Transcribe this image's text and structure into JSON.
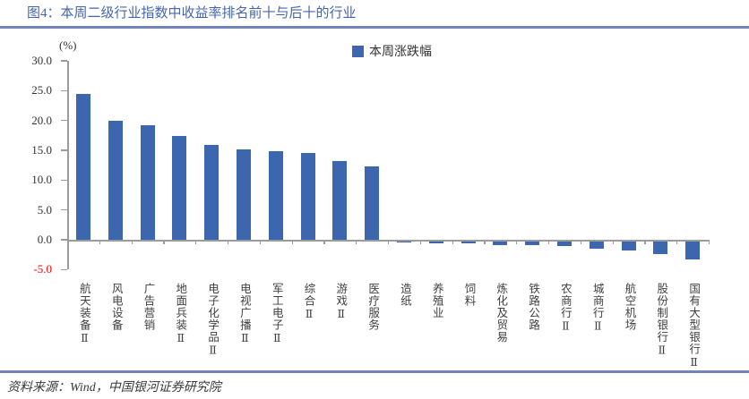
{
  "header": {
    "title": "图4：本周二级行业指数中收益率排名前十与后十的行业"
  },
  "footer": {
    "source": "资料来源：Wind，中国银河证券研究院"
  },
  "colors": {
    "bar": "#3C66AE",
    "title": "#4565AE",
    "divider": "#7384BC",
    "axis": "#9B9B9B",
    "tick_text": "#333333",
    "negative_tick_text": "#FF0000",
    "label_text": "#404040"
  },
  "chart_data": {
    "type": "bar",
    "title": "图4：本周二级行业指数中收益率排名前十与后十的行业",
    "unit_label": "(%)",
    "legend": [
      "本周涨跌幅"
    ],
    "legend_position": "top-center",
    "grid": false,
    "ylim": [
      -5,
      30
    ],
    "ytick_step": 5,
    "negative_ytick_color": "#FF0000",
    "categories": [
      "航天装备Ⅱ",
      "风电设备",
      "广告营销",
      "地面兵装Ⅱ",
      "电子化学品Ⅱ",
      "电视广播Ⅱ",
      "军工电子Ⅱ",
      "综合Ⅱ",
      "游戏Ⅱ",
      "医疗服务",
      "造纸",
      "养殖业",
      "饲料",
      "炼化及贸易",
      "铁路公路",
      "农商行Ⅱ",
      "城商行Ⅱ",
      "航空机场",
      "股份制银行Ⅱ",
      "国有大型银行Ⅱ"
    ],
    "values": [
      24.5,
      20.0,
      19.2,
      17.4,
      15.9,
      15.1,
      14.9,
      14.5,
      13.2,
      12.3,
      -0.2,
      -0.4,
      -0.4,
      -0.6,
      -0.6,
      -0.8,
      -1.2,
      -1.6,
      -2.2,
      -3.0
    ]
  }
}
